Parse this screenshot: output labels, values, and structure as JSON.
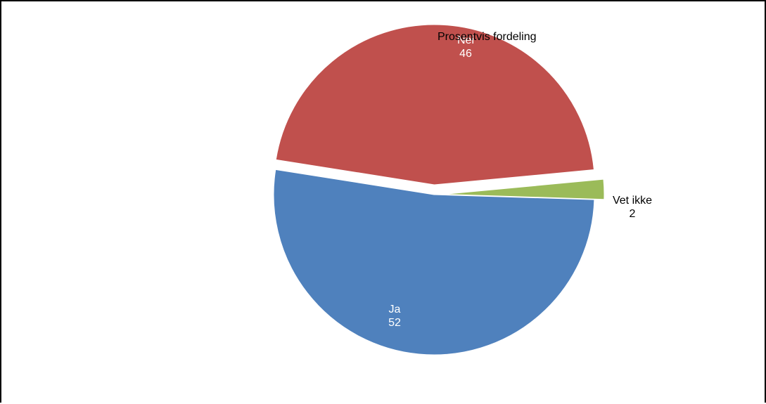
{
  "chart_data": {
    "type": "pie",
    "title": "Prosentvis fordeling",
    "slices": [
      {
        "label": "Nei",
        "value": 46,
        "color": "#c0504d",
        "exploded": true,
        "label_color": "#ffffff"
      },
      {
        "label": "Vet ikke",
        "value": 2,
        "color": "#9bbb59",
        "exploded": true,
        "label_color": "#000000"
      },
      {
        "label": "Ja",
        "value": 52,
        "color": "#4f81bd",
        "exploded": false,
        "label_color": "#ffffff"
      }
    ]
  }
}
